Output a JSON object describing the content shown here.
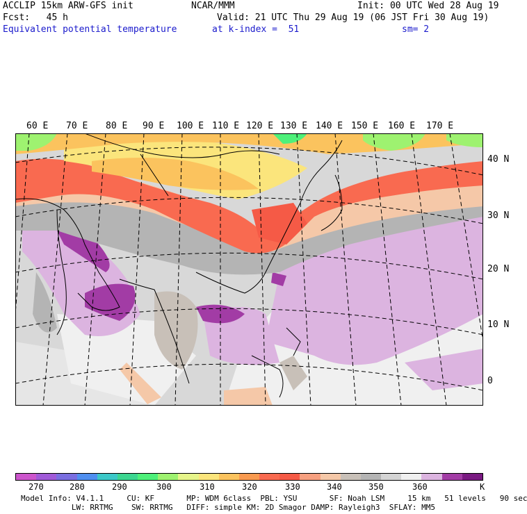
{
  "header": {
    "line1_left": "ACCLIP 15km ARW-GFS init",
    "line1_center": "NCAR/MMM",
    "line1_right": "Init: 00 UTC Wed 28 Aug 19",
    "line2_left": "Fcst:   45 h",
    "line2_right": "Valid: 21 UTC Thu 29 Aug 19 (06 JST Fri 30 Aug 19)",
    "line3_field": "Equivalent potential temperature",
    "line3_level": "at k-index =  51",
    "line3_smooth": "sm= 2"
  },
  "map": {
    "lon_labels": [
      "60 E",
      "70 E",
      "80 E",
      "90 E",
      "100 E",
      "110 E",
      "120 E",
      "130 E",
      "140 E",
      "150 E",
      "160 E",
      "170 E"
    ],
    "lat_labels": [
      "40 N",
      "30 N",
      "20 N",
      "10 N",
      "0"
    ]
  },
  "colorbar": {
    "unit": "K",
    "colors": [
      "#cc55cc",
      "#a05ad8",
      "#7a6ee0",
      "#4f8ff0",
      "#3cc8c8",
      "#3cd690",
      "#4ef07a",
      "#9ef270",
      "#e6f58a",
      "#fbe57c",
      "#fbc35e",
      "#f99a50",
      "#f96a50",
      "#f55a46",
      "#f7a080",
      "#f5c8a8",
      "#c8c0b8",
      "#b4b4b4",
      "#d4d4d4",
      "#f0f0f0",
      "#dcb4e0",
      "#a23ca5",
      "#7a1a82"
    ],
    "tick_labels": [
      "270",
      "280",
      "290",
      "300",
      "310",
      "320",
      "330",
      "340",
      "350",
      "360"
    ]
  },
  "footer": {
    "line1": "Model Info: V4.1.1     CU: KF       MP: WDM 6class  PBL: YSU       SF: Noah LSM     15 km   51 levels   90 sec",
    "line2": "           LW: RRTMG    SW: RRTMG   DIFF: simple KM: 2D Smagor DAMP: Rayleigh3  SFLAY: MM5"
  }
}
